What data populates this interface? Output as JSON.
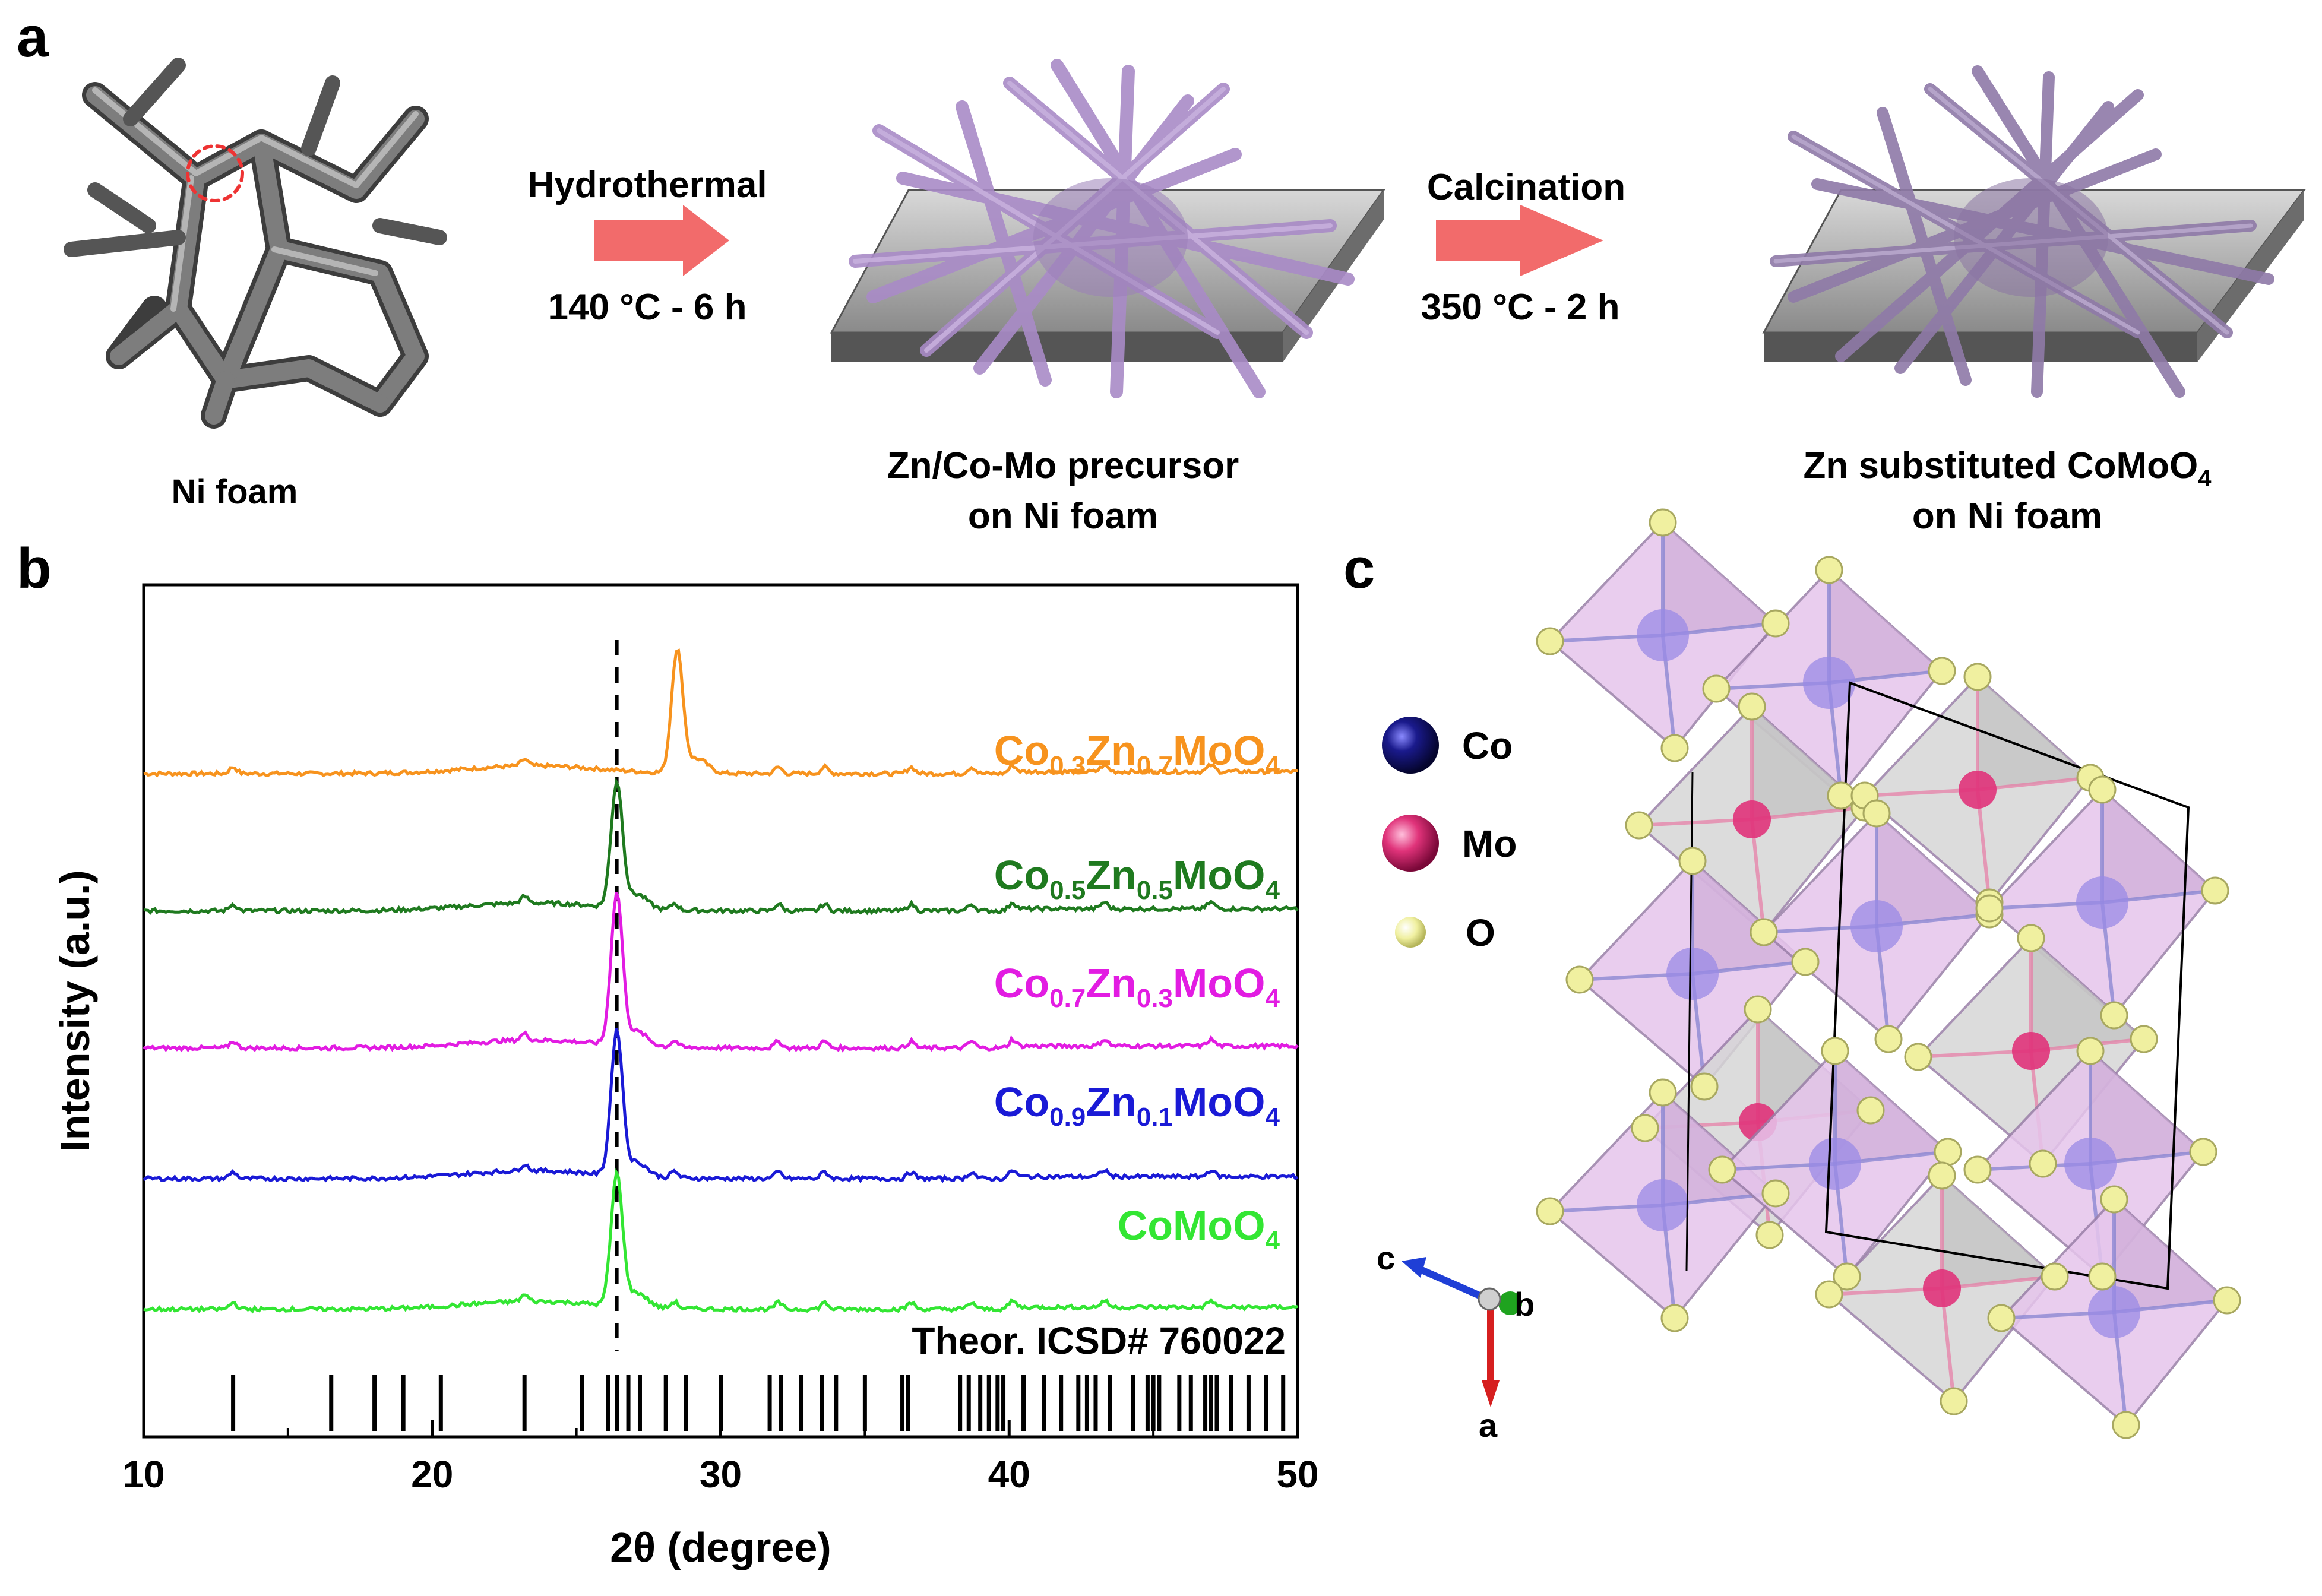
{
  "panels": {
    "a": "a",
    "b": "b",
    "c": "c"
  },
  "schematic": {
    "step1_material": "Ni foam",
    "arrow1_top": "Hydrothermal",
    "arrow1_bottom": "140 °C - 6 h",
    "step2_line1": "Zn/Co-Mo precursor",
    "step2_line2": "on Ni foam",
    "arrow2_top": "Calcination",
    "arrow2_bottom": "350 °C - 2 h",
    "step3_line1": "Zn substituted CoMoO",
    "step3_line1_sub": "4",
    "step3_line2": "on Ni foam",
    "arrow_color": "#f26b6b",
    "foam_color": "#6f6f6f",
    "rod_color": "#a98bc7",
    "plate_color": "#9a9a9a"
  },
  "chart_data": {
    "type": "line",
    "xlabel": "2θ (degree)",
    "ylabel": "Intensity (a.u.)",
    "xlim": [
      10,
      50
    ],
    "xticks": [
      10,
      20,
      30,
      40,
      50
    ],
    "ref_line_x": 26.4,
    "series": [
      {
        "name": "Co0.3Zn0.7MoO4",
        "label_parts": [
          "Co",
          "0.3",
          "Zn",
          "0.7",
          "MoO",
          "4"
        ],
        "color": "#f7931e",
        "baseline": 8.2,
        "peak": 28.5,
        "main_height": 1.8
      },
      {
        "name": "Co0.5Zn0.5MoO4",
        "label_parts": [
          "Co",
          "0.5",
          "Zn",
          "0.5",
          "MoO",
          "4"
        ],
        "color": "#1f7a1f",
        "baseline": 6.1,
        "peak": 26.4,
        "main_height": 1.9
      },
      {
        "name": "Co0.7Zn0.3MoO4",
        "label_parts": [
          "Co",
          "0.7",
          "Zn",
          "0.3",
          "MoO",
          "4"
        ],
        "color": "#e21ce2",
        "baseline": 4.0,
        "peak": 26.4,
        "main_height": 2.3
      },
      {
        "name": "Co0.9Zn0.1MoO4",
        "label_parts": [
          "Co",
          "0.9",
          "Zn",
          "0.1",
          "MoO",
          "4"
        ],
        "color": "#1a1ad6",
        "baseline": 2.0,
        "peak": 26.4,
        "main_height": 2.2
      },
      {
        "name": "CoMoO4",
        "label_parts": [
          "CoMoO",
          "4"
        ],
        "color": "#33e633",
        "baseline": 0.0,
        "peak": 26.4,
        "main_height": 2.0
      }
    ],
    "minor_peaks": [
      13.1,
      23.2,
      28.4,
      32.0,
      33.6,
      36.6,
      38.7,
      40.1,
      43.3,
      47.0
    ],
    "reference": {
      "label": "Theor. ICSD# 760022",
      "positions": [
        13.1,
        16.5,
        18.0,
        19.0,
        20.3,
        23.2,
        25.2,
        26.1,
        26.4,
        26.8,
        27.2,
        28.1,
        28.8,
        30.0,
        31.7,
        32.1,
        32.8,
        33.5,
        34.0,
        35.0,
        36.3,
        36.5,
        38.3,
        38.6,
        39.0,
        39.3,
        39.6,
        39.8,
        40.5,
        41.2,
        41.8,
        42.4,
        42.7,
        43.0,
        43.5,
        44.3,
        44.8,
        45.0,
        45.2,
        45.9,
        46.3,
        46.8,
        47.0,
        47.2,
        47.7,
        48.3,
        48.9,
        49.5
      ]
    }
  },
  "structure": {
    "legend": [
      "Co",
      "Mo",
      "O"
    ],
    "axis_labels": [
      "c",
      "b",
      "a"
    ],
    "co_color": "#1a1a8c",
    "mo_color": "#e0337a",
    "o_color": "#f0f0a0",
    "polyhedron_color": "#e6c5ec"
  }
}
